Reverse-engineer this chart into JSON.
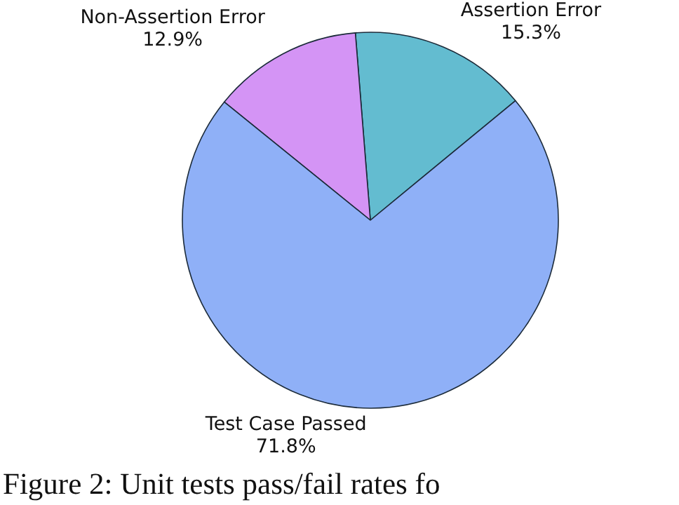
{
  "chart_data": {
    "type": "pie",
    "categories": [
      "Assertion Error",
      "Non-Assertion Error",
      "Test Case Passed"
    ],
    "values": [
      15.3,
      12.9,
      71.8
    ],
    "value_labels": [
      "15.3%",
      "12.9%",
      "71.8%"
    ],
    "colors": [
      "#63bcd0",
      "#d494f5",
      "#8fb0f7"
    ],
    "annotations": [
      "Figure 2: Unit tests pass/fail rates fo"
    ]
  }
}
